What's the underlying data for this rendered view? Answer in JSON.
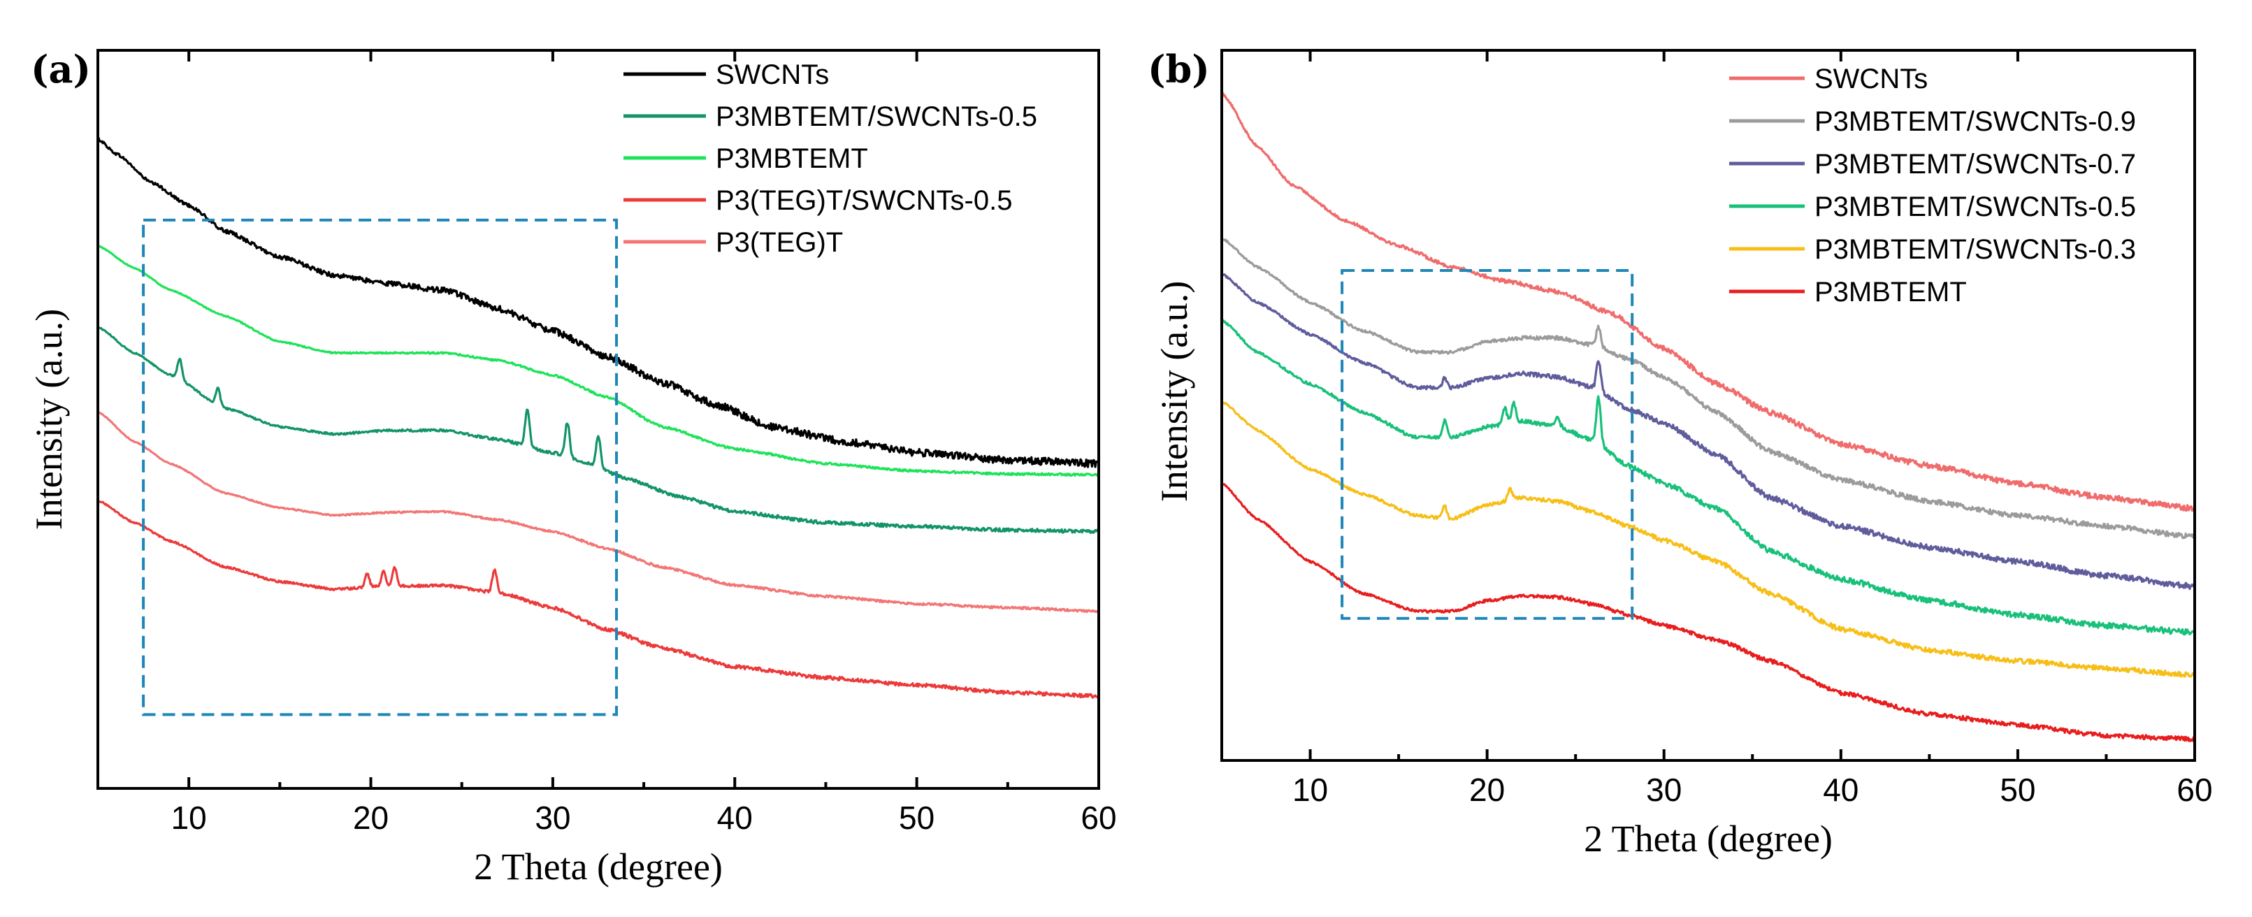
{
  "chart_data": [
    {
      "type": "line",
      "panel": "(a)",
      "xlabel": "2 Theta (degree)",
      "ylabel": "Intensity  (a.u.)",
      "xlim": [
        5,
        60
      ],
      "ylim": [
        0,
        100
      ],
      "xticks": [
        10,
        20,
        30,
        40,
        50,
        60
      ],
      "yticks_shown": false,
      "legend_position": "top-right",
      "highlight_box": {
        "x_range": [
          7.5,
          33.5
        ],
        "y_range": [
          10,
          77
        ]
      },
      "series": [
        {
          "name": "SWCNTs",
          "color": "#000000",
          "noise": 1.0,
          "points": [
            [
              5,
              88
            ],
            [
              6,
              86
            ],
            [
              8,
              82
            ],
            [
              10,
              79
            ],
            [
              12,
              75.5
            ],
            [
              15,
              72
            ],
            [
              18,
              69.5
            ],
            [
              21,
              68.4
            ],
            [
              24,
              67.5
            ],
            [
              27,
              65
            ],
            [
              30,
              62
            ],
            [
              33,
              58.5
            ],
            [
              36,
              55
            ],
            [
              39,
              52
            ],
            [
              42,
              49
            ],
            [
              46,
              47
            ],
            [
              50,
              45.5
            ],
            [
              55,
              44.5
            ],
            [
              60,
              44
            ]
          ],
          "peaks": []
        },
        {
          "name": "P3MBTEMT/SWCNTs-0.5",
          "color": "#139466",
          "noise": 0.45,
          "points": [
            [
              5,
              62.5
            ],
            [
              7,
              59
            ],
            [
              9,
              56
            ],
            [
              12,
              51.5
            ],
            [
              15,
              49
            ],
            [
              18,
              48
            ],
            [
              21,
              48.5
            ],
            [
              24,
              48.5
            ],
            [
              27,
              47.3
            ],
            [
              30,
              45.5
            ],
            [
              32,
              44
            ],
            [
              34,
              42
            ],
            [
              37,
              39.5
            ],
            [
              40,
              37.5
            ],
            [
              45,
              36
            ],
            [
              50,
              35.5
            ],
            [
              55,
              35
            ],
            [
              60,
              34.8
            ]
          ],
          "peaks": [
            [
              9.5,
              2.8
            ],
            [
              11.6,
              2.3
            ],
            [
              28.6,
              5.2
            ],
            [
              30.8,
              4.7
            ],
            [
              32.5,
              4.2
            ]
          ]
        },
        {
          "name": "P3MBTEMT",
          "color": "#1ee35a",
          "noise": 0.3,
          "points": [
            [
              5,
              73.5
            ],
            [
              7,
              70.5
            ],
            [
              9,
              67.5
            ],
            [
              12,
              64
            ],
            [
              15,
              60.5
            ],
            [
              18,
              59
            ],
            [
              21,
              59
            ],
            [
              24,
              59
            ],
            [
              27,
              58
            ],
            [
              30,
              56
            ],
            [
              33,
              53
            ],
            [
              36,
              49
            ],
            [
              40,
              46
            ],
            [
              45,
              44
            ],
            [
              50,
              43
            ],
            [
              55,
              42.6
            ],
            [
              60,
              42.5
            ]
          ],
          "peaks": []
        },
        {
          "name": "P3(TEG)T/SWCNTs-0.5",
          "color": "#ec3a3a",
          "noise": 0.5,
          "points": [
            [
              5,
              39
            ],
            [
              7,
              36
            ],
            [
              9,
              33.5
            ],
            [
              12,
              30
            ],
            [
              15,
              28
            ],
            [
              18,
              27
            ],
            [
              21,
              27.4
            ],
            [
              24,
              27.5
            ],
            [
              27,
              26.5
            ],
            [
              30,
              24.5
            ],
            [
              33,
              21.5
            ],
            [
              36,
              19
            ],
            [
              40,
              16.5
            ],
            [
              45,
              15
            ],
            [
              50,
              14
            ],
            [
              55,
              13
            ],
            [
              60,
              12.5
            ]
          ],
          "peaks": [
            [
              19.8,
              1.8
            ],
            [
              20.7,
              2.0
            ],
            [
              21.3,
              2.6
            ],
            [
              26.8,
              3.2
            ]
          ]
        },
        {
          "name": "P3(TEG)T",
          "color": "#f27676",
          "noise": 0.3,
          "points": [
            [
              5,
              51
            ],
            [
              7,
              47
            ],
            [
              9,
              44
            ],
            [
              12,
              40
            ],
            [
              15,
              38
            ],
            [
              18,
              37
            ],
            [
              21,
              37.4
            ],
            [
              24,
              37.5
            ],
            [
              27,
              36.4
            ],
            [
              30,
              34.8
            ],
            [
              33,
              32.5
            ],
            [
              36,
              30
            ],
            [
              40,
              27.5
            ],
            [
              45,
              26
            ],
            [
              50,
              25
            ],
            [
              55,
              24.5
            ],
            [
              60,
              24
            ]
          ],
          "peaks": []
        }
      ]
    },
    {
      "type": "line",
      "panel": "(b)",
      "xlabel": "2 Theta (degree)",
      "ylabel": "Intensity  (a.u.)",
      "xlim": [
        5,
        60
      ],
      "ylim": [
        0,
        100
      ],
      "xticks": [
        10,
        20,
        30,
        40,
        50,
        60
      ],
      "yticks_shown": false,
      "legend_position": "top-right",
      "highlight_box": {
        "x_range": [
          11.8,
          28.2
        ],
        "y_range": [
          20,
          69
        ]
      },
      "series": [
        {
          "name": "SWCNTs",
          "color": "#f06b6b",
          "noise": 0.8,
          "points": [
            [
              5,
              94
            ],
            [
              7,
              86.5
            ],
            [
              9,
              81
            ],
            [
              12,
              76
            ],
            [
              15,
              72.5
            ],
            [
              18,
              69.5
            ],
            [
              21,
              67.5
            ],
            [
              24,
              66
            ],
            [
              27,
              63
            ],
            [
              30,
              58
            ],
            [
              33,
              53
            ],
            [
              36,
              49
            ],
            [
              40,
              44.5
            ],
            [
              45,
              41.5
            ],
            [
              50,
              39
            ],
            [
              55,
              37
            ],
            [
              60,
              35.5
            ]
          ],
          "peaks": []
        },
        {
          "name": "P3MBTEMT/SWCNTs-0.9",
          "color": "#9b9b9b",
          "noise": 0.7,
          "points": [
            [
              5,
              73.5
            ],
            [
              7,
              69.5
            ],
            [
              10,
              64.5
            ],
            [
              13,
              60.5
            ],
            [
              16,
              57.5
            ],
            [
              18,
              57.5
            ],
            [
              20,
              59
            ],
            [
              22,
              59.5
            ],
            [
              24,
              59.5
            ],
            [
              26,
              58.5
            ],
            [
              28,
              56.5
            ],
            [
              30,
              54
            ],
            [
              33,
              49
            ],
            [
              36,
              43.5
            ],
            [
              40,
              39.5
            ],
            [
              45,
              36.5
            ],
            [
              50,
              34.5
            ],
            [
              55,
              33
            ],
            [
              60,
              31.5
            ]
          ],
          "peaks": [
            [
              26.3,
              2.8
            ]
          ]
        },
        {
          "name": "P3MBTEMT/SWCNTs-0.7",
          "color": "#5f5c9c",
          "noise": 0.8,
          "points": [
            [
              5,
              68.5
            ],
            [
              7,
              64.5
            ],
            [
              10,
              60
            ],
            [
              13,
              56
            ],
            [
              16,
              52.5
            ],
            [
              18,
              52.5
            ],
            [
              20,
              53.8
            ],
            [
              22,
              54.5
            ],
            [
              24,
              54
            ],
            [
              26,
              52.5
            ],
            [
              28,
              49.5
            ],
            [
              30,
              47.5
            ],
            [
              33,
              43
            ],
            [
              36,
              37
            ],
            [
              40,
              33
            ],
            [
              45,
              30
            ],
            [
              50,
              28
            ],
            [
              55,
              26
            ],
            [
              60,
              24.5
            ]
          ],
          "peaks": [
            [
              17.6,
              1.4
            ],
            [
              26.3,
              4.2
            ]
          ]
        },
        {
          "name": "P3MBTEMT/SWCNTs-0.5",
          "color": "#18c07a",
          "noise": 0.8,
          "points": [
            [
              5,
              62
            ],
            [
              7,
              57.5
            ],
            [
              10,
              53
            ],
            [
              13,
              49
            ],
            [
              16,
              45.5
            ],
            [
              18,
              45.5
            ],
            [
              20,
              47
            ],
            [
              22,
              47.8
            ],
            [
              24,
              47
            ],
            [
              26,
              45
            ],
            [
              28,
              41.5
            ],
            [
              30,
              39
            ],
            [
              33,
              35.5
            ],
            [
              36,
              29.5
            ],
            [
              40,
              25.5
            ],
            [
              45,
              22.5
            ],
            [
              50,
              20.5
            ],
            [
              55,
              19
            ],
            [
              60,
              18
            ]
          ],
          "peaks": [
            [
              17.6,
              2.4
            ],
            [
              21,
              2.2
            ],
            [
              21.5,
              2.8
            ],
            [
              24,
              1.2
            ],
            [
              26.3,
              6.5
            ]
          ]
        },
        {
          "name": "P3MBTEMT/SWCNTs-0.3",
          "color": "#f7be16",
          "noise": 0.7,
          "points": [
            [
              5,
              50.5
            ],
            [
              7,
              46.5
            ],
            [
              10,
              41
            ],
            [
              13,
              37.5
            ],
            [
              16,
              34.5
            ],
            [
              18,
              34
            ],
            [
              20,
              36
            ],
            [
              22,
              37
            ],
            [
              24,
              36.5
            ],
            [
              26,
              35
            ],
            [
              28,
              33
            ],
            [
              30,
              31
            ],
            [
              33,
              28
            ],
            [
              36,
              23.5
            ],
            [
              40,
              18.5
            ],
            [
              45,
              15.5
            ],
            [
              50,
              14
            ],
            [
              55,
              13
            ],
            [
              60,
              12
            ]
          ],
          "peaks": [
            [
              17.6,
              1.8
            ],
            [
              21.3,
              1.5
            ]
          ]
        },
        {
          "name": "P3MBTEMT",
          "color": "#e81e1e",
          "noise": 0.6,
          "points": [
            [
              5,
              39
            ],
            [
              7,
              34
            ],
            [
              10,
              28
            ],
            [
              13,
              23.5
            ],
            [
              16,
              21
            ],
            [
              18,
              21
            ],
            [
              20,
              22.5
            ],
            [
              22,
              23.2
            ],
            [
              24,
              23
            ],
            [
              26,
              22
            ],
            [
              28,
              20.5
            ],
            [
              30,
              19
            ],
            [
              33,
              17
            ],
            [
              36,
              14
            ],
            [
              40,
              9.5
            ],
            [
              45,
              6.5
            ],
            [
              50,
              5
            ],
            [
              55,
              3.5
            ],
            [
              60,
              3
            ]
          ],
          "peaks": []
        }
      ]
    }
  ]
}
